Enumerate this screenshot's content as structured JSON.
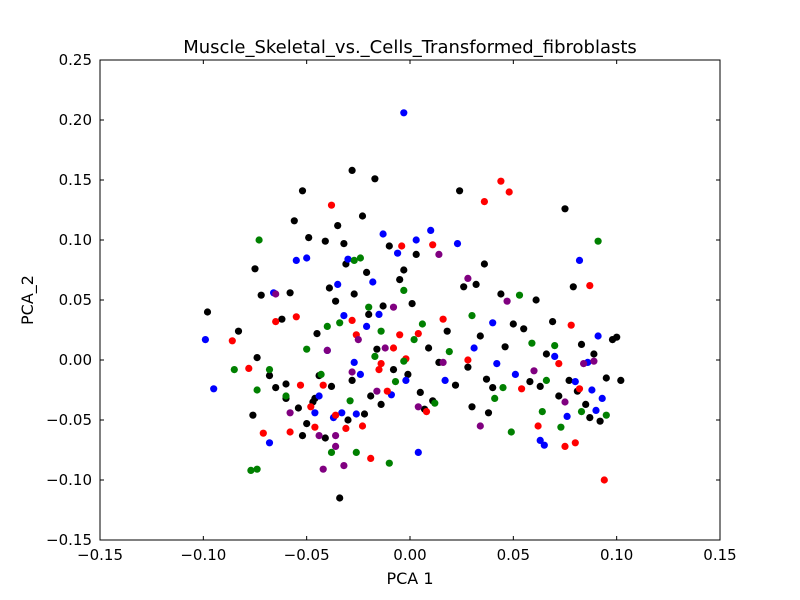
{
  "chart_data": {
    "type": "scatter",
    "title": "Muscle_Skeletal_vs._Cells_Transformed_fibroblasts",
    "xlabel": "PCA 1",
    "ylabel": "PCA_2",
    "xlim": [
      -0.15,
      0.15
    ],
    "ylim": [
      -0.15,
      0.25
    ],
    "xticks": [
      -0.15,
      -0.1,
      -0.05,
      0.0,
      0.05,
      0.1,
      0.15
    ],
    "xtick_labels": [
      "−0.15",
      "−0.10",
      "−0.05",
      "0.00",
      "0.05",
      "0.10",
      "0.15"
    ],
    "yticks": [
      -0.15,
      -0.1,
      -0.05,
      0.0,
      0.05,
      0.1,
      0.15,
      0.2,
      0.25
    ],
    "ytick_labels": [
      "−0.15",
      "−0.10",
      "−0.05",
      "0.00",
      "0.05",
      "0.10",
      "0.15",
      "0.20",
      "0.25"
    ],
    "grid": false,
    "series": [
      {
        "color": "#000000",
        "points": [
          [
            -0.098,
            0.04
          ],
          [
            -0.083,
            0.024
          ],
          [
            -0.075,
            0.076
          ],
          [
            -0.072,
            0.054
          ],
          [
            -0.074,
            0.002
          ],
          [
            -0.076,
            -0.046
          ],
          [
            -0.068,
            -0.013
          ],
          [
            -0.062,
            0.034
          ],
          [
            -0.065,
            -0.023
          ],
          [
            -0.06,
            -0.032
          ],
          [
            -0.058,
            0.056
          ],
          [
            -0.056,
            0.116
          ],
          [
            -0.052,
            0.141
          ],
          [
            -0.049,
            0.102
          ],
          [
            -0.045,
            0.022
          ],
          [
            -0.044,
            -0.013
          ],
          [
            -0.046,
            -0.032
          ],
          [
            -0.047,
            -0.035
          ],
          [
            -0.05,
            -0.053
          ],
          [
            -0.054,
            -0.04
          ],
          [
            -0.041,
            0.099
          ],
          [
            -0.039,
            0.06
          ],
          [
            -0.036,
            0.049
          ],
          [
            -0.035,
            0.112
          ],
          [
            -0.032,
            0.097
          ],
          [
            -0.031,
            0.08
          ],
          [
            -0.028,
            0.158
          ],
          [
            -0.027,
            0.055
          ],
          [
            -0.023,
            0.12
          ],
          [
            -0.021,
            0.073
          ],
          [
            -0.02,
            0.038
          ],
          [
            -0.019,
            -0.03
          ],
          [
            -0.017,
            0.151
          ],
          [
            -0.016,
            0.009
          ],
          [
            -0.013,
            0.045
          ],
          [
            -0.01,
            0.095
          ],
          [
            -0.008,
            -0.008
          ],
          [
            -0.005,
            0.067
          ],
          [
            -0.003,
            0.075
          ],
          [
            -0.001,
            -0.012
          ],
          [
            0.001,
            0.047
          ],
          [
            0.003,
            0.088
          ],
          [
            0.005,
            -0.027
          ],
          [
            0.007,
            -0.041
          ],
          [
            0.009,
            0.01
          ],
          [
            0.011,
            -0.034
          ],
          [
            0.014,
            -0.002
          ],
          [
            0.018,
            0.024
          ],
          [
            0.022,
            -0.021
          ],
          [
            0.024,
            0.141
          ],
          [
            0.026,
            0.061
          ],
          [
            0.028,
            -0.006
          ],
          [
            0.03,
            -0.039
          ],
          [
            0.032,
            0.063
          ],
          [
            0.034,
            0.02
          ],
          [
            0.036,
            0.08
          ],
          [
            0.037,
            -0.016
          ],
          [
            0.038,
            -0.044
          ],
          [
            0.04,
            -0.023
          ],
          [
            0.044,
            0.055
          ],
          [
            0.046,
            0.011
          ],
          [
            0.05,
            0.03
          ],
          [
            0.055,
            0.026
          ],
          [
            0.058,
            -0.018
          ],
          [
            0.061,
            0.05
          ],
          [
            0.063,
            -0.022
          ],
          [
            0.066,
            0.005
          ],
          [
            0.069,
            0.032
          ],
          [
            0.072,
            -0.03
          ],
          [
            0.075,
            0.126
          ],
          [
            0.077,
            -0.017
          ],
          [
            0.079,
            0.061
          ],
          [
            0.081,
            -0.026
          ],
          [
            0.083,
            0.013
          ],
          [
            0.085,
            -0.037
          ],
          [
            0.087,
            -0.048
          ],
          [
            0.089,
            0.005
          ],
          [
            0.092,
            -0.051
          ],
          [
            0.095,
            -0.015
          ],
          [
            0.098,
            0.017
          ],
          [
            0.1,
            0.019
          ],
          [
            0.102,
            -0.017
          ],
          [
            -0.052,
            -0.063
          ],
          [
            -0.041,
            -0.065
          ],
          [
            -0.03,
            -0.05
          ],
          [
            -0.022,
            -0.045
          ],
          [
            -0.014,
            -0.037
          ],
          [
            -0.038,
            -0.022
          ],
          [
            -0.028,
            -0.017
          ],
          [
            -0.06,
            -0.02
          ],
          [
            -0.034,
            -0.115
          ]
        ]
      },
      {
        "color": "#0000ff",
        "points": [
          [
            -0.099,
            0.017
          ],
          [
            -0.095,
            -0.024
          ],
          [
            -0.068,
            -0.069
          ],
          [
            -0.066,
            0.056
          ],
          [
            -0.055,
            0.083
          ],
          [
            -0.05,
            0.085
          ],
          [
            -0.046,
            -0.044
          ],
          [
            -0.044,
            -0.03
          ],
          [
            -0.04,
            0.008
          ],
          [
            -0.037,
            -0.048
          ],
          [
            -0.035,
            0.063
          ],
          [
            -0.032,
            0.037
          ],
          [
            -0.03,
            0.084
          ],
          [
            -0.027,
            -0.002
          ],
          [
            -0.024,
            -0.012
          ],
          [
            -0.021,
            0.028
          ],
          [
            -0.018,
            0.065
          ],
          [
            -0.015,
            0.038
          ],
          [
            -0.013,
            0.105
          ],
          [
            -0.009,
            -0.029
          ],
          [
            -0.006,
            0.089
          ],
          [
            -0.003,
            0.206
          ],
          [
            -0.002,
            -0.017
          ],
          [
            0.003,
            0.1
          ],
          [
            0.01,
            0.108
          ],
          [
            0.017,
            -0.017
          ],
          [
            0.023,
            0.097
          ],
          [
            0.031,
            0.01
          ],
          [
            0.04,
            0.031
          ],
          [
            0.042,
            -0.003
          ],
          [
            0.051,
            -0.012
          ],
          [
            0.063,
            -0.067
          ],
          [
            0.065,
            -0.071
          ],
          [
            0.07,
            0.003
          ],
          [
            0.076,
            -0.047
          ],
          [
            0.08,
            -0.018
          ],
          [
            0.082,
            0.083
          ],
          [
            0.086,
            -0.002
          ],
          [
            0.088,
            -0.025
          ],
          [
            0.09,
            -0.042
          ],
          [
            0.091,
            0.02
          ],
          [
            0.093,
            -0.032
          ],
          [
            0.004,
            -0.077
          ],
          [
            -0.026,
            -0.045
          ],
          [
            -0.033,
            -0.044
          ]
        ]
      },
      {
        "color": "#ff0000",
        "points": [
          [
            -0.086,
            0.016
          ],
          [
            -0.078,
            -0.007
          ],
          [
            -0.071,
            -0.061
          ],
          [
            -0.065,
            0.032
          ],
          [
            -0.058,
            -0.06
          ],
          [
            -0.055,
            0.036
          ],
          [
            -0.053,
            -0.021
          ],
          [
            -0.048,
            -0.039
          ],
          [
            -0.046,
            -0.056
          ],
          [
            -0.042,
            -0.021
          ],
          [
            -0.038,
            0.129
          ],
          [
            -0.036,
            -0.046
          ],
          [
            -0.031,
            -0.057
          ],
          [
            -0.028,
            0.033
          ],
          [
            -0.026,
            0.021
          ],
          [
            -0.023,
            -0.055
          ],
          [
            -0.019,
            -0.082
          ],
          [
            -0.015,
            -0.008
          ],
          [
            -0.011,
            -0.026
          ],
          [
            -0.008,
            0.01
          ],
          [
            -0.005,
            0.021
          ],
          [
            -0.004,
            0.095
          ],
          [
            -0.002,
            0.001
          ],
          [
            0.004,
            0.022
          ],
          [
            0.008,
            -0.043
          ],
          [
            0.011,
            0.096
          ],
          [
            0.016,
            0.034
          ],
          [
            0.028,
            0.0
          ],
          [
            0.036,
            0.132
          ],
          [
            0.044,
            0.149
          ],
          [
            0.048,
            0.14
          ],
          [
            0.054,
            -0.024
          ],
          [
            0.062,
            -0.055
          ],
          [
            0.072,
            -0.003
          ],
          [
            0.075,
            -0.072
          ],
          [
            0.078,
            0.029
          ],
          [
            0.08,
            -0.069
          ],
          [
            0.082,
            -0.024
          ],
          [
            0.087,
            0.062
          ],
          [
            0.094,
            -0.1
          ],
          [
            -0.014,
            -0.003
          ]
        ]
      },
      {
        "color": "#008000",
        "points": [
          [
            -0.085,
            -0.008
          ],
          [
            -0.077,
            -0.092
          ],
          [
            -0.074,
            -0.091
          ],
          [
            -0.073,
            0.1
          ],
          [
            -0.074,
            -0.025
          ],
          [
            -0.068,
            -0.008
          ],
          [
            -0.06,
            -0.03
          ],
          [
            -0.05,
            0.009
          ],
          [
            -0.043,
            -0.012
          ],
          [
            -0.04,
            0.028
          ],
          [
            -0.038,
            -0.077
          ],
          [
            -0.034,
            0.031
          ],
          [
            -0.029,
            -0.034
          ],
          [
            -0.026,
            -0.077
          ],
          [
            -0.024,
            0.085
          ],
          [
            -0.02,
            0.044
          ],
          [
            -0.017,
            0.003
          ],
          [
            -0.014,
            0.024
          ],
          [
            -0.01,
            -0.086
          ],
          [
            -0.007,
            -0.018
          ],
          [
            -0.003,
            -0.001
          ],
          [
            0.002,
            0.017
          ],
          [
            0.006,
            0.03
          ],
          [
            0.012,
            -0.036
          ],
          [
            0.019,
            0.007
          ],
          [
            0.03,
            0.037
          ],
          [
            0.041,
            -0.032
          ],
          [
            0.045,
            -0.023
          ],
          [
            0.049,
            -0.06
          ],
          [
            0.053,
            0.054
          ],
          [
            0.059,
            0.014
          ],
          [
            0.064,
            -0.043
          ],
          [
            0.066,
            -0.017
          ],
          [
            0.07,
            0.012
          ],
          [
            0.073,
            -0.056
          ],
          [
            0.083,
            -0.043
          ],
          [
            0.091,
            0.099
          ],
          [
            0.095,
            -0.046
          ],
          [
            -0.027,
            0.083
          ],
          [
            -0.003,
            0.058
          ]
        ]
      },
      {
        "color": "#800080",
        "points": [
          [
            -0.065,
            0.055
          ],
          [
            -0.058,
            -0.044
          ],
          [
            -0.044,
            -0.063
          ],
          [
            -0.04,
            0.008
          ],
          [
            -0.036,
            -0.063
          ],
          [
            -0.032,
            -0.088
          ],
          [
            -0.042,
            -0.091
          ],
          [
            -0.025,
            0.017
          ],
          [
            -0.016,
            -0.026
          ],
          [
            -0.012,
            0.01
          ],
          [
            -0.008,
            0.044
          ],
          [
            0.004,
            -0.039
          ],
          [
            0.014,
            0.088
          ],
          [
            0.016,
            -0.002
          ],
          [
            0.028,
            0.068
          ],
          [
            0.034,
            -0.055
          ],
          [
            0.047,
            0.049
          ],
          [
            0.06,
            -0.009
          ],
          [
            0.075,
            -0.035
          ],
          [
            0.084,
            -0.003
          ],
          [
            0.089,
            -0.001
          ],
          [
            -0.028,
            -0.01
          ],
          [
            -0.036,
            -0.072
          ]
        ]
      }
    ]
  }
}
